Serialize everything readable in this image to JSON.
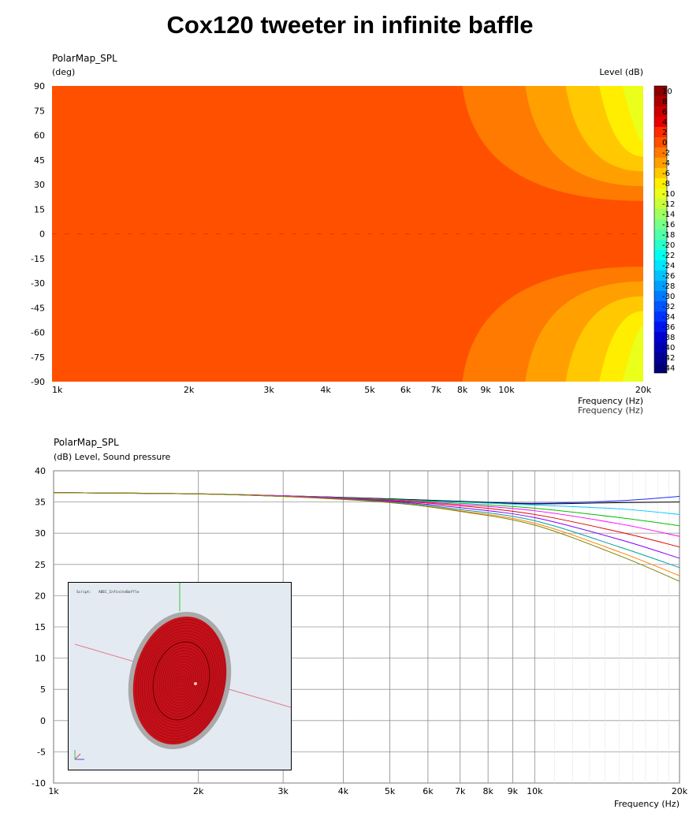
{
  "title": "Cox120 tweeter in infinite baffle",
  "chart_data": [
    {
      "type": "heatmap",
      "title": "PolarMap_SPL",
      "ylabel": "(deg)",
      "xlabel": "Frequency  (Hz)",
      "xlabel_echo": "Frequency  (Hz)",
      "colorbar_label": "Level  (dB)",
      "x_scale": "log",
      "xlim": [
        1000,
        20000
      ],
      "ylim": [
        -90,
        90
      ],
      "x_ticks": [
        {
          "value": 1000,
          "label": "1k"
        },
        {
          "value": 2000,
          "label": "2k"
        },
        {
          "value": 3000,
          "label": "3k"
        },
        {
          "value": 4000,
          "label": "4k"
        },
        {
          "value": 5000,
          "label": "5k"
        },
        {
          "value": 6000,
          "label": "6k"
        },
        {
          "value": 7000,
          "label": "7k"
        },
        {
          "value": 8000,
          "label": "8k"
        },
        {
          "value": 9000,
          "label": "9k"
        },
        {
          "value": 10000,
          "label": "10k"
        },
        {
          "value": 20000,
          "label": "20k"
        }
      ],
      "y_ticks": [
        90,
        75,
        60,
        45,
        30,
        15,
        0,
        -15,
        -30,
        -45,
        -60,
        -75,
        -90
      ],
      "colorbar_levels": [
        10,
        8,
        6,
        4,
        2,
        0,
        -2,
        -4,
        -6,
        -8,
        -10,
        -12,
        -14,
        -16,
        -18,
        -20,
        -22,
        -24,
        -26,
        -28,
        -30,
        -32,
        -34,
        -36,
        -38,
        -40,
        -42,
        -44
      ],
      "colorbar_colors": [
        "#8c0000",
        "#ac0000",
        "#cc0000",
        "#e80000",
        "#ff2a00",
        "#ff5000",
        "#ff7a00",
        "#ffa000",
        "#ffc800",
        "#ffee00",
        "#eaff1a",
        "#c8ff3c",
        "#a0ff60",
        "#78ff88",
        "#50ffaa",
        "#2affcc",
        "#00ffee",
        "#00e6ff",
        "#00c2ff",
        "#009eff",
        "#007aff",
        "#0056ff",
        "#0032ff",
        "#0014f0",
        "#0000d2",
        "#0000b4",
        "#000096",
        "#000078"
      ],
      "regions": [
        {
          "level": 0,
          "color": "#ff5000",
          "boundary_start_freq": null
        },
        {
          "level": -2,
          "color": "#ff7a00",
          "boundary_start_freq": 8000
        },
        {
          "level": -4,
          "color": "#ffa000",
          "boundary_start_freq": 11000
        },
        {
          "level": -6,
          "color": "#ffc800",
          "boundary_start_freq": 13500
        },
        {
          "level": -8,
          "color": "#ffee00",
          "boundary_start_freq": 16000
        },
        {
          "level": -10,
          "color": "#eaff1a",
          "boundary_start_freq": 18000
        }
      ]
    },
    {
      "type": "line",
      "title": "PolarMap_SPL",
      "ylabel": "(dB)  Level, Sound pressure",
      "xlabel": "Frequency  (Hz)",
      "x_scale": "log",
      "xlim": [
        1000,
        20000
      ],
      "ylim": [
        -10,
        40
      ],
      "y_ticks": [
        40,
        35,
        30,
        25,
        20,
        15,
        10,
        5,
        0,
        -5,
        -10
      ],
      "x_ticks": [
        {
          "value": 1000,
          "label": "1k"
        },
        {
          "value": 2000,
          "label": "2k"
        },
        {
          "value": 3000,
          "label": "3k"
        },
        {
          "value": 4000,
          "label": "4k"
        },
        {
          "value": 5000,
          "label": "5k"
        },
        {
          "value": 6000,
          "label": "6k"
        },
        {
          "value": 7000,
          "label": "7k"
        },
        {
          "value": 8000,
          "label": "8k"
        },
        {
          "value": 9000,
          "label": "9k"
        },
        {
          "value": 10000,
          "label": "10k"
        },
        {
          "value": 20000,
          "label": "20k"
        }
      ],
      "x": [
        1000,
        2000,
        3000,
        5000,
        7000,
        10000,
        15000,
        20000
      ],
      "series": [
        {
          "color": "#1f2aff",
          "values": [
            36.5,
            36.3,
            36.0,
            35.5,
            35.1,
            34.8,
            35.2,
            35.9
          ]
        },
        {
          "color": "#000000",
          "values": [
            36.5,
            36.3,
            36.0,
            35.5,
            35.1,
            34.7,
            34.9,
            35.0
          ]
        },
        {
          "color": "#00c8ff",
          "values": [
            36.5,
            36.3,
            36.0,
            35.4,
            35.0,
            34.5,
            33.9,
            33.0
          ]
        },
        {
          "color": "#00c000",
          "values": [
            36.5,
            36.3,
            36.0,
            35.4,
            34.8,
            34.0,
            32.5,
            31.2
          ]
        },
        {
          "color": "#ff00ff",
          "values": [
            36.5,
            36.3,
            36.0,
            35.3,
            34.6,
            33.6,
            31.5,
            29.5
          ]
        },
        {
          "color": "#e00000",
          "values": [
            36.5,
            36.3,
            35.9,
            35.2,
            34.4,
            33.0,
            30.2,
            27.8
          ]
        },
        {
          "color": "#8000ff",
          "values": [
            36.5,
            36.3,
            35.9,
            35.1,
            34.1,
            32.5,
            29.0,
            26.0
          ]
        },
        {
          "color": "#00a0a0",
          "values": [
            36.5,
            36.3,
            35.9,
            35.0,
            33.8,
            32.0,
            27.8,
            24.5
          ]
        },
        {
          "color": "#ff8000",
          "values": [
            36.5,
            36.3,
            35.9,
            34.9,
            33.6,
            31.6,
            27.0,
            23.2
          ]
        },
        {
          "color": "#808000",
          "values": [
            36.5,
            36.3,
            35.9,
            34.9,
            33.5,
            31.3,
            26.4,
            22.3
          ]
        }
      ]
    }
  ],
  "inset": {
    "script_label": "Script:",
    "script_name": "ABEC_InfiniteBaffle"
  }
}
